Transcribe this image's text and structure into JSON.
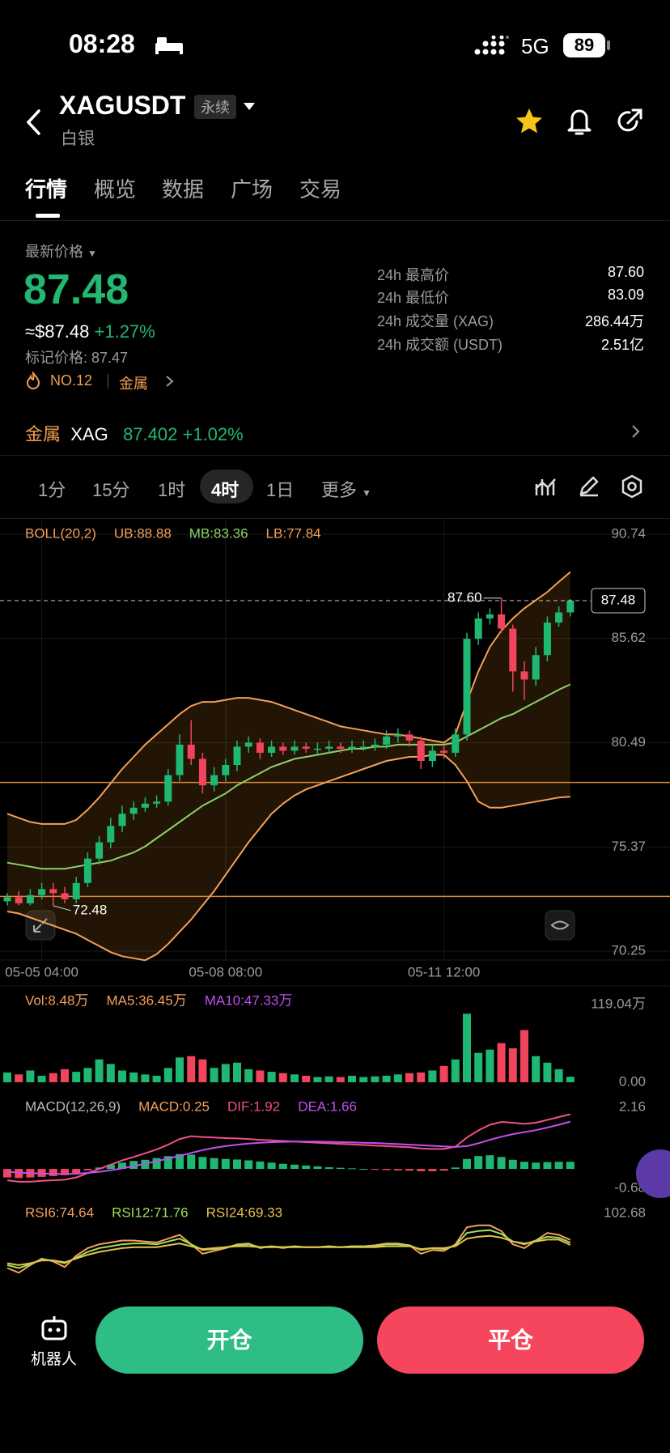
{
  "status_bar": {
    "time": "08:28",
    "network": "5G",
    "battery": "89"
  },
  "header": {
    "symbol": "XAGUSDT",
    "contract": "永续",
    "name": "白银"
  },
  "tabs": [
    "行情",
    "概览",
    "数据",
    "广场",
    "交易"
  ],
  "ticker": {
    "price_label": "最新价格",
    "price": "87.48",
    "usd_price": "≈$87.48",
    "change": "+1.27%",
    "mark_price": "标记价格: 87.47",
    "rank": "NO.12",
    "sector": "金属"
  },
  "stats": [
    {
      "label": "24h 最高价",
      "value": "87.60"
    },
    {
      "label": "24h 最低价",
      "value": "83.09"
    },
    {
      "label": "24h 成交量 (XAG)",
      "value": "286.44万"
    },
    {
      "label": "24h 成交额 (USDT)",
      "value": "2.51亿"
    }
  ],
  "related": {
    "sector": "金属",
    "symbol": "XAG",
    "price": "87.402",
    "change": "+1.02%"
  },
  "intervals": [
    "1分",
    "15分",
    "1时",
    "4时",
    "1日",
    "更多"
  ],
  "buttons": {
    "robot": "机器人",
    "open": "开仓",
    "close": "平仓"
  },
  "chart_data": [
    {
      "type": "candlestick",
      "categories": [
        null,
        null,
        null,
        "05-05 04:00",
        null,
        null,
        null,
        null,
        null,
        null,
        null,
        null,
        null,
        null,
        null,
        null,
        null,
        null,
        null,
        "05-08 08:00",
        null,
        null,
        null,
        null,
        null,
        null,
        null,
        null,
        null,
        null,
        null,
        null,
        null,
        null,
        null,
        null,
        null,
        null,
        "05-11 12:00",
        null,
        null,
        null,
        null,
        null,
        null,
        null,
        null,
        null,
        null,
        null
      ],
      "open": [
        72.7,
        72.9,
        72.6,
        73.0,
        73.3,
        73.1,
        72.8,
        73.6,
        74.8,
        75.6,
        76.4,
        77.0,
        77.3,
        77.5,
        77.6,
        78.9,
        80.4,
        79.7,
        78.4,
        78.9,
        79.4,
        80.3,
        80.5,
        80.0,
        80.3,
        80.1,
        80.3,
        80.2,
        80.2,
        80.3,
        80.2,
        80.3,
        80.3,
        80.4,
        80.8,
        80.9,
        80.6,
        79.6,
        80.1,
        80.0,
        80.9,
        85.6,
        86.6,
        86.8,
        86.1,
        84.0,
        83.6,
        84.8,
        86.4,
        86.9
      ],
      "high": [
        73.1,
        73.2,
        73.3,
        73.6,
        73.6,
        73.4,
        73.9,
        75.1,
        75.9,
        76.8,
        77.4,
        77.6,
        77.8,
        77.9,
        79.2,
        80.9,
        81.6,
        80.0,
        79.3,
        79.7,
        80.6,
        80.8,
        80.7,
        80.6,
        80.5,
        80.6,
        80.5,
        80.5,
        80.6,
        80.5,
        80.6,
        80.6,
        80.7,
        81.1,
        81.2,
        81.1,
        80.8,
        80.4,
        80.4,
        81.2,
        85.9,
        86.9,
        87.1,
        87.6,
        86.3,
        84.5,
        85.2,
        86.7,
        87.2,
        87.55
      ],
      "low": [
        72.5,
        72.5,
        72.5,
        72.8,
        72.48,
        72.6,
        72.6,
        73.4,
        74.5,
        75.3,
        76.1,
        76.7,
        77.1,
        77.3,
        77.4,
        78.6,
        79.4,
        78.0,
        78.1,
        78.6,
        79.1,
        80.0,
        79.7,
        79.8,
        79.9,
        79.9,
        80.0,
        79.9,
        80.0,
        80.0,
        80.0,
        80.1,
        80.1,
        80.2,
        80.5,
        80.3,
        79.2,
        79.3,
        79.7,
        79.8,
        80.6,
        85.3,
        86.3,
        85.9,
        83.0,
        82.6,
        83.3,
        84.5,
        86.2,
        86.7
      ],
      "close": [
        72.9,
        72.6,
        73.0,
        73.3,
        73.1,
        72.8,
        73.6,
        74.8,
        75.6,
        76.4,
        77.0,
        77.3,
        77.5,
        77.6,
        78.9,
        80.4,
        79.7,
        78.4,
        78.9,
        79.4,
        80.3,
        80.5,
        80.0,
        80.3,
        80.1,
        80.3,
        80.2,
        80.2,
        80.3,
        80.2,
        80.3,
        80.3,
        80.4,
        80.8,
        80.9,
        80.6,
        79.6,
        80.1,
        80.0,
        80.9,
        85.6,
        86.6,
        86.8,
        86.1,
        84.0,
        83.6,
        84.8,
        86.4,
        86.9,
        87.48
      ],
      "up_color": "#1fb872",
      "down_color": "#f0455c",
      "series": [
        {
          "name": "UB",
          "color": "#f5a05a",
          "values": [
            77.0,
            76.8,
            76.6,
            76.5,
            76.5,
            76.5,
            76.7,
            77.2,
            77.8,
            78.5,
            79.2,
            79.8,
            80.4,
            80.9,
            81.4,
            81.9,
            82.3,
            82.5,
            82.5,
            82.6,
            82.7,
            82.7,
            82.6,
            82.5,
            82.3,
            82.1,
            81.9,
            81.7,
            81.5,
            81.3,
            81.2,
            81.1,
            81.0,
            80.9,
            80.9,
            80.8,
            80.7,
            80.6,
            80.5,
            80.9,
            82.5,
            84.0,
            85.2,
            86.0,
            86.6,
            87.1,
            87.5,
            87.9,
            88.4,
            88.88
          ]
        },
        {
          "name": "MB",
          "color": "#8fd16a",
          "values": [
            74.6,
            74.5,
            74.4,
            74.3,
            74.3,
            74.3,
            74.4,
            74.5,
            74.6,
            74.7,
            74.9,
            75.1,
            75.4,
            75.8,
            76.2,
            76.6,
            77.0,
            77.4,
            77.7,
            78.0,
            78.4,
            78.7,
            79.0,
            79.3,
            79.5,
            79.7,
            79.8,
            79.9,
            80.0,
            80.1,
            80.2,
            80.2,
            80.3,
            80.3,
            80.4,
            80.4,
            80.4,
            80.4,
            80.4,
            80.5,
            80.8,
            81.1,
            81.4,
            81.7,
            81.9,
            82.2,
            82.5,
            82.8,
            83.1,
            83.36
          ]
        },
        {
          "name": "LB",
          "color": "#f5a05a",
          "values": [
            72.2,
            72.1,
            71.9,
            71.7,
            71.5,
            71.3,
            71.1,
            70.8,
            70.5,
            70.2,
            70.0,
            69.9,
            69.8,
            70.1,
            70.6,
            71.2,
            71.8,
            72.5,
            73.2,
            74.0,
            74.8,
            75.6,
            76.3,
            77.0,
            77.5,
            77.9,
            78.2,
            78.4,
            78.6,
            78.8,
            79.0,
            79.2,
            79.4,
            79.6,
            79.7,
            79.8,
            79.8,
            79.9,
            79.9,
            79.4,
            78.6,
            77.6,
            77.3,
            77.3,
            77.4,
            77.5,
            77.6,
            77.7,
            77.8,
            77.84
          ]
        }
      ],
      "band_fill": "rgba(170,105,25,0.2)",
      "legend": [
        {
          "text": "BOLL(20,2)",
          "color": "#f5a05a"
        },
        {
          "text": "UB:88.88",
          "color": "#f5a05a"
        },
        {
          "text": "MB:83.36",
          "color": "#8fd16a"
        },
        {
          "text": "LB:77.84",
          "color": "#f5a05a"
        }
      ],
      "ylim": [
        70.25,
        90.74
      ],
      "yticks": [
        90.74,
        85.62,
        80.49,
        75.37,
        70.25
      ],
      "grid": true,
      "last_price": 87.48,
      "hlines": [
        78.54,
        72.94
      ],
      "hline_color": "#d98a3a",
      "markers": [
        {
          "value": 87.6,
          "label": "87.60"
        },
        {
          "value": 72.48,
          "label": "72.48"
        }
      ]
    },
    {
      "type": "bar",
      "values": [
        15,
        12,
        18,
        10,
        14,
        20,
        16,
        22,
        35,
        28,
        18,
        15,
        12,
        10,
        22,
        38,
        40,
        35,
        22,
        28,
        30,
        20,
        18,
        16,
        14,
        12,
        10,
        8,
        9,
        8,
        10,
        8,
        9,
        10,
        12,
        14,
        15,
        18,
        25,
        35,
        105,
        45,
        50,
        60,
        52,
        80,
        40,
        30,
        20,
        8.48
      ],
      "legend": [
        {
          "text": "Vol:8.48万",
          "color": "#f5a05a"
        },
        {
          "text": "MA5:36.45万",
          "color": "#f5a05a"
        },
        {
          "text": "MA10:47.33万",
          "color": "#c050f0"
        }
      ],
      "ylim": [
        0,
        119.04
      ],
      "yticks": [
        {
          "value": 119.04,
          "label": "119.04万"
        },
        {
          "value": 0,
          "label": "0.00"
        }
      ]
    },
    {
      "type": "macd",
      "values": [
        -0.3,
        -0.32,
        -0.3,
        -0.28,
        -0.25,
        -0.22,
        -0.15,
        -0.05,
        0.05,
        0.15,
        0.22,
        0.28,
        0.32,
        0.38,
        0.45,
        0.52,
        0.5,
        0.42,
        0.38,
        0.35,
        0.33,
        0.3,
        0.26,
        0.22,
        0.18,
        0.15,
        0.12,
        0.09,
        0.06,
        0.04,
        0.02,
        0.0,
        -0.03,
        -0.04,
        -0.05,
        -0.06,
        -0.08,
        -0.08,
        -0.06,
        0.05,
        0.35,
        0.45,
        0.48,
        0.42,
        0.32,
        0.25,
        0.22,
        0.24,
        0.25,
        0.25
      ],
      "series": [
        {
          "name": "DIF",
          "color": "#f0508a",
          "values": [
            -0.4,
            -0.45,
            -0.45,
            -0.42,
            -0.4,
            -0.38,
            -0.3,
            -0.15,
            0.0,
            0.15,
            0.3,
            0.42,
            0.55,
            0.68,
            0.85,
            1.05,
            1.15,
            1.12,
            1.1,
            1.08,
            1.07,
            1.05,
            1.02,
            1.0,
            0.98,
            0.96,
            0.94,
            0.92,
            0.9,
            0.88,
            0.86,
            0.84,
            0.82,
            0.8,
            0.78,
            0.76,
            0.72,
            0.7,
            0.7,
            0.78,
            1.1,
            1.35,
            1.55,
            1.65,
            1.62,
            1.58,
            1.62,
            1.72,
            1.82,
            1.92
          ]
        },
        {
          "name": "DEA",
          "color": "#c050f0",
          "values": [
            -0.1,
            -0.13,
            -0.15,
            -0.16,
            -0.17,
            -0.18,
            -0.17,
            -0.14,
            -0.1,
            -0.05,
            0.02,
            0.1,
            0.18,
            0.27,
            0.36,
            0.46,
            0.56,
            0.66,
            0.74,
            0.8,
            0.85,
            0.89,
            0.92,
            0.94,
            0.95,
            0.96,
            0.96,
            0.96,
            0.95,
            0.94,
            0.93,
            0.92,
            0.91,
            0.89,
            0.87,
            0.85,
            0.83,
            0.81,
            0.79,
            0.77,
            0.8,
            0.9,
            1.02,
            1.13,
            1.22,
            1.29,
            1.36,
            1.45,
            1.55,
            1.66
          ]
        }
      ],
      "legend": [
        {
          "text": "MACD(12,26,9)",
          "color": "#bbbbbb"
        },
        {
          "text": "MACD:0.25",
          "color": "#f5a05a"
        },
        {
          "text": "DIF:1.92",
          "color": "#f0508a"
        },
        {
          "text": "DEA:1.66",
          "color": "#c050f0"
        }
      ],
      "ylim": [
        -0.68,
        2.16
      ],
      "yticks": [
        2.16,
        -0.68
      ]
    },
    {
      "type": "line",
      "series": [
        {
          "name": "RSI6",
          "color": "#f5a05a",
          "values": [
            45,
            40,
            48,
            55,
            52,
            46,
            58,
            66,
            70,
            72,
            74,
            74,
            73,
            72,
            76,
            80,
            70,
            60,
            63,
            66,
            70,
            71,
            66,
            68,
            66,
            68,
            67,
            67,
            68,
            67,
            68,
            68,
            69,
            71,
            71,
            69,
            60,
            64,
            63,
            70,
            88,
            90,
            90,
            84,
            70,
            66,
            74,
            82,
            80,
            74.64
          ]
        },
        {
          "name": "RSI12",
          "color": "#9be05a",
          "values": [
            48,
            45,
            49,
            54,
            53,
            50,
            56,
            62,
            66,
            68,
            70,
            71,
            71,
            70,
            73,
            76,
            70,
            64,
            65,
            67,
            69,
            70,
            67,
            68,
            67,
            68,
            67,
            67,
            68,
            67,
            68,
            68,
            68,
            70,
            70,
            69,
            64,
            66,
            65,
            69,
            82,
            84,
            85,
            81,
            73,
            70,
            74,
            78,
            77,
            71.76
          ]
        },
        {
          "name": "RSI24",
          "color": "#e8c04a",
          "values": [
            50,
            48,
            50,
            53,
            53,
            51,
            55,
            59,
            62,
            64,
            66,
            67,
            67,
            67,
            69,
            71,
            68,
            65,
            66,
            67,
            68,
            68,
            67,
            67,
            67,
            67,
            67,
            67,
            67,
            67,
            67,
            67,
            67,
            68,
            68,
            68,
            65,
            66,
            66,
            68,
            76,
            78,
            79,
            77,
            73,
            71,
            73,
            75,
            75,
            69.33
          ]
        }
      ],
      "legend": [
        {
          "text": "RSI6:74.64",
          "color": "#f5a05a"
        },
        {
          "text": "RSI12:71.76",
          "color": "#9be05a"
        },
        {
          "text": "RSI24:69.33",
          "color": "#e8c04a"
        }
      ],
      "ylim": [
        30,
        102.68
      ],
      "yticks": [
        102.68
      ]
    }
  ]
}
